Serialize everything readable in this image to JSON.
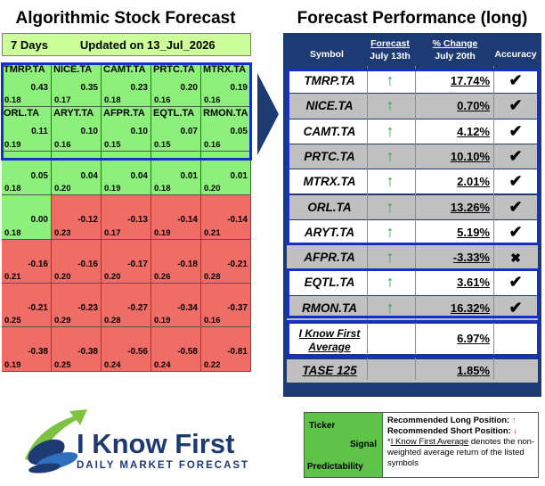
{
  "left_title": "Algorithmic Stock Forecast",
  "header": {
    "days": "7 Days",
    "updated": "Updated on 13_Jul_2026"
  },
  "grid": [
    [
      {
        "ticker": "TMRP.TA",
        "signal": "0.43",
        "pred": "0.18",
        "color": "pos"
      },
      {
        "ticker": "NICE.TA",
        "signal": "0.35",
        "pred": "0.17",
        "color": "pos"
      },
      {
        "ticker": "CAMT.TA",
        "signal": "0.23",
        "pred": "0.18",
        "color": "pos"
      },
      {
        "ticker": "PRTC.TA",
        "signal": "0.20",
        "pred": "0.16",
        "color": "pos"
      },
      {
        "ticker": "MTRX.TA",
        "signal": "0.19",
        "pred": "0.16",
        "color": "pos"
      }
    ],
    [
      {
        "ticker": "ORL.TA",
        "signal": "0.11",
        "pred": "0.19",
        "color": "pos"
      },
      {
        "ticker": "ARYT.TA",
        "signal": "0.10",
        "pred": "0.16",
        "color": "pos"
      },
      {
        "ticker": "AFPR.TA",
        "signal": "0.10",
        "pred": "0.15",
        "color": "pos"
      },
      {
        "ticker": "EQTL.TA",
        "signal": "0.07",
        "pred": "0.15",
        "color": "pos"
      },
      {
        "ticker": "RMON.TA",
        "signal": "0.05",
        "pred": "0.16",
        "color": "pos"
      }
    ],
    [
      {
        "ticker": "",
        "signal": "0.05",
        "pred": "0.18",
        "color": "pos"
      },
      {
        "ticker": "",
        "signal": "0.04",
        "pred": "0.20",
        "color": "pos"
      },
      {
        "ticker": "",
        "signal": "0.04",
        "pred": "0.19",
        "color": "pos"
      },
      {
        "ticker": "",
        "signal": "0.01",
        "pred": "0.18",
        "color": "pos"
      },
      {
        "ticker": "",
        "signal": "0.01",
        "pred": "0.20",
        "color": "pos"
      }
    ],
    [
      {
        "ticker": "",
        "signal": "0.00",
        "pred": "0.18",
        "color": "pos"
      },
      {
        "ticker": "",
        "signal": "-0.12",
        "pred": "0.23",
        "color": "neg"
      },
      {
        "ticker": "",
        "signal": "-0.13",
        "pred": "0.17",
        "color": "neg"
      },
      {
        "ticker": "",
        "signal": "-0.14",
        "pred": "0.19",
        "color": "neg"
      },
      {
        "ticker": "",
        "signal": "-0.14",
        "pred": "0.21",
        "color": "neg"
      }
    ],
    [
      {
        "ticker": "",
        "signal": "-0.16",
        "pred": "0.21",
        "color": "neg"
      },
      {
        "ticker": "",
        "signal": "-0.16",
        "pred": "0.20",
        "color": "neg"
      },
      {
        "ticker": "",
        "signal": "-0.17",
        "pred": "0.20",
        "color": "neg"
      },
      {
        "ticker": "",
        "signal": "-0.18",
        "pred": "0.26",
        "color": "neg"
      },
      {
        "ticker": "",
        "signal": "-0.21",
        "pred": "0.28",
        "color": "neg"
      }
    ],
    [
      {
        "ticker": "",
        "signal": "-0.21",
        "pred": "0.25",
        "color": "neg"
      },
      {
        "ticker": "",
        "signal": "-0.23",
        "pred": "0.29",
        "color": "neg"
      },
      {
        "ticker": "",
        "signal": "-0.27",
        "pred": "0.28",
        "color": "neg"
      },
      {
        "ticker": "",
        "signal": "-0.34",
        "pred": "0.19",
        "color": "neg"
      },
      {
        "ticker": "",
        "signal": "-0.37",
        "pred": "0.16",
        "color": "neg"
      }
    ],
    [
      {
        "ticker": "",
        "signal": "-0.38",
        "pred": "0.19",
        "color": "neg"
      },
      {
        "ticker": "",
        "signal": "-0.38",
        "pred": "0.25",
        "color": "neg"
      },
      {
        "ticker": "",
        "signal": "-0.56",
        "pred": "0.24",
        "color": "neg"
      },
      {
        "ticker": "",
        "signal": "-0.58",
        "pred": "0.24",
        "color": "neg"
      },
      {
        "ticker": "",
        "signal": "-0.81",
        "pred": "0.22",
        "color": "neg"
      }
    ]
  ],
  "right_title": "Forecast Performance (long)",
  "table_headers": {
    "symbol": "Symbol",
    "forecast_top": "Forecast",
    "forecast_bottom": "July 13th",
    "change_top": "% Change",
    "change_bottom": "July 20th",
    "accuracy": "Accuracy"
  },
  "rows": [
    {
      "symbol": "TMRP.TA",
      "forecast": "↑",
      "change": "17.74%",
      "accuracy": "✔",
      "style": "white"
    },
    {
      "symbol": "NICE.TA",
      "forecast": "↑",
      "change": "0.70%",
      "accuracy": "✔",
      "style": "gray"
    },
    {
      "symbol": "CAMT.TA",
      "forecast": "↑",
      "change": "4.12%",
      "accuracy": "✔",
      "style": "white"
    },
    {
      "symbol": "PRTC.TA",
      "forecast": "↑",
      "change": "10.10%",
      "accuracy": "✔",
      "style": "gray"
    },
    {
      "symbol": "MTRX.TA",
      "forecast": "↑",
      "change": "2.01%",
      "accuracy": "✔",
      "style": "white"
    },
    {
      "symbol": "ORL.TA",
      "forecast": "↑",
      "change": "13.26%",
      "accuracy": "✔",
      "style": "gray"
    },
    {
      "symbol": "ARYT.TA",
      "forecast": "↑",
      "change": "5.19%",
      "accuracy": "✔",
      "style": "white"
    },
    {
      "symbol": "AFPR.TA",
      "forecast": "↑",
      "change": "-3.33%",
      "accuracy": "✖",
      "style": "gray"
    },
    {
      "symbol": "EQTL.TA",
      "forecast": "↑",
      "change": "3.61%",
      "accuracy": "✔",
      "style": "white"
    },
    {
      "symbol": "RMON.TA",
      "forecast": "↑",
      "change": "16.32%",
      "accuracy": "✔",
      "style": "gray"
    }
  ],
  "average": {
    "label_line1": "I Know First",
    "label_line2": "Average",
    "change": "6.97%"
  },
  "benchmark": {
    "symbol": "TASE 125",
    "change": "1.85%"
  },
  "logo": {
    "name": "I Know First",
    "tagline": "DAILY MARKET FORECAST"
  },
  "legend": {
    "ticker": "Ticker",
    "signal": "Signal",
    "predictability": "Predictability",
    "long_label": "Recommended Long Position:",
    "short_label": "Recommended Short Position:",
    "up_arrow": "↑",
    "down_arrow": "↓",
    "note_marker": "*",
    "note_link": "I Know First Average",
    "note_text": " denotes the non-weighted average return of the listed symbols"
  },
  "colors": {
    "positive": "#8ef07c",
    "negative": "#f06c66",
    "navy": "#1d3b72",
    "highlight": "#1530c8",
    "arrow_up": "#2fa84f"
  }
}
